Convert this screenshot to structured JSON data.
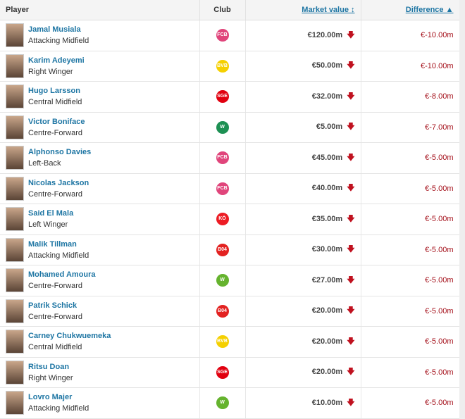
{
  "headers": {
    "player": "Player",
    "club": "Club",
    "market_value": "Market value ↕",
    "difference": "Difference ▲"
  },
  "clubs": {
    "bayern": {
      "abbr": "FCB",
      "color": "#e0457b"
    },
    "bvb": {
      "abbr": "BVB",
      "color": "#f5d000"
    },
    "sge": {
      "abbr": "SGE",
      "color": "#e1000f"
    },
    "svw": {
      "abbr": "W",
      "color": "#1d9053"
    },
    "koln": {
      "abbr": "KÖ",
      "color": "#ed1c24"
    },
    "b04": {
      "abbr": "B04",
      "color": "#e32221"
    },
    "wob": {
      "abbr": "W",
      "color": "#65b32e"
    }
  },
  "rows": [
    {
      "name": "Jamal Musiala",
      "position": "Attacking Midfield",
      "club": "bayern",
      "value": "€120.00m",
      "diff": "€-10.00m"
    },
    {
      "name": "Karim Adeyemi",
      "position": "Right Winger",
      "club": "bvb",
      "value": "€50.00m",
      "diff": "€-10.00m"
    },
    {
      "name": "Hugo Larsson",
      "position": "Central Midfield",
      "club": "sge",
      "value": "€32.00m",
      "diff": "€-8.00m"
    },
    {
      "name": "Victor Boniface",
      "position": "Centre-Forward",
      "club": "svw",
      "value": "€5.00m",
      "diff": "€-7.00m"
    },
    {
      "name": "Alphonso Davies",
      "position": "Left-Back",
      "club": "bayern",
      "value": "€45.00m",
      "diff": "€-5.00m"
    },
    {
      "name": "Nicolas Jackson",
      "position": "Centre-Forward",
      "club": "bayern",
      "value": "€40.00m",
      "diff": "€-5.00m"
    },
    {
      "name": "Said El Mala",
      "position": "Left Winger",
      "club": "koln",
      "value": "€35.00m",
      "diff": "€-5.00m"
    },
    {
      "name": "Malik Tillman",
      "position": "Attacking Midfield",
      "club": "b04",
      "value": "€30.00m",
      "diff": "€-5.00m"
    },
    {
      "name": "Mohamed Amoura",
      "position": "Centre-Forward",
      "club": "wob",
      "value": "€27.00m",
      "diff": "€-5.00m"
    },
    {
      "name": "Patrik Schick",
      "position": "Centre-Forward",
      "club": "b04",
      "value": "€20.00m",
      "diff": "€-5.00m"
    },
    {
      "name": "Carney Chukwuemeka",
      "position": "Central Midfield",
      "club": "bvb",
      "value": "€20.00m",
      "diff": "€-5.00m"
    },
    {
      "name": "Ritsu Doan",
      "position": "Right Winger",
      "club": "sge",
      "value": "€20.00m",
      "diff": "€-5.00m"
    },
    {
      "name": "Lovro Majer",
      "position": "Attacking Midfield",
      "club": "wob",
      "value": "€10.00m",
      "diff": "€-5.00m"
    }
  ],
  "trend_icon": "arrow-down-icon"
}
